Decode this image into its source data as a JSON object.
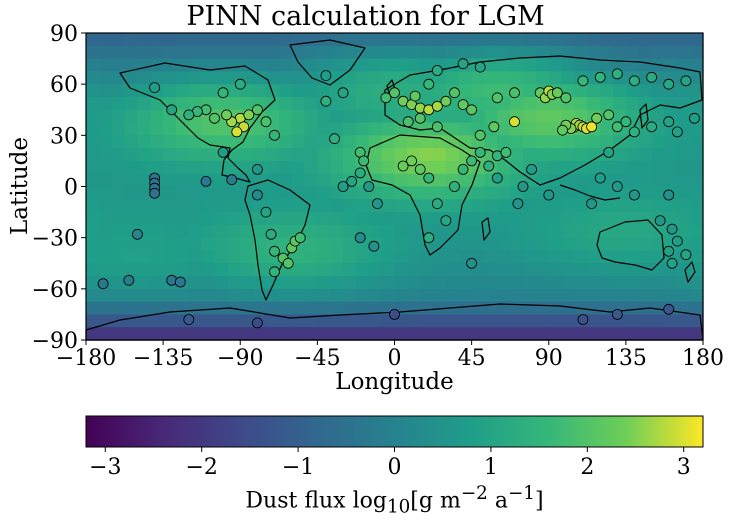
{
  "chart_data": [
    {
      "type": "heatmap",
      "title": "PINN calculation for LGM",
      "xlabel": "Longitude",
      "ylabel": "Latitude",
      "xlim": [
        -180,
        180
      ],
      "ylim": [
        -90,
        90
      ],
      "x_ticks": [
        -180,
        -135,
        -90,
        -45,
        0,
        45,
        90,
        135,
        180
      ],
      "x_tick_labels": [
        "−180",
        "−135",
        "−90",
        "−45",
        "0",
        "45",
        "90",
        "135",
        "180"
      ],
      "y_ticks": [
        -90,
        -60,
        -30,
        0,
        30,
        60,
        90
      ],
      "y_tick_labels": [
        "−90",
        "−60",
        "−30",
        "0",
        "30",
        "60",
        "90"
      ],
      "background": "global map of dust flux with coastlines",
      "colormap": "viridis",
      "colorbar": {
        "label": "Dust flux log10[g m−2 a−1]",
        "label_parts": {
          "prefix": "Dust flux log",
          "sub": "10",
          "mid": "[g m",
          "sup1": "−2",
          "mid2": " a",
          "sup2": "−1",
          "suffix": "]"
        },
        "range": [
          -3.2,
          3.2
        ],
        "ticks": [
          -3,
          -2,
          -1,
          0,
          1,
          2,
          3
        ],
        "tick_labels": [
          "−3",
          "−2",
          "−1",
          "0",
          "1",
          "2",
          "3"
        ],
        "orientation": "horizontal"
      },
      "field_hotspots": [
        {
          "lon": 20,
          "lat": 18,
          "value": 2.6
        },
        {
          "lon": 90,
          "lat": 42,
          "value": 2.4
        },
        {
          "lon": 60,
          "lat": 60,
          "value": 2.2
        },
        {
          "lon": -100,
          "lat": 40,
          "value": 2.2
        },
        {
          "lon": -60,
          "lat": -40,
          "value": 1.6
        },
        {
          "lon": 0,
          "lat": 62,
          "value": 1.8
        },
        {
          "lon": 135,
          "lat": -28,
          "value": 1.2
        },
        {
          "lon": -150,
          "lat": -45,
          "value": 1.1
        },
        {
          "lon": 160,
          "lat": 50,
          "value": 1.0
        }
      ],
      "points": [
        {
          "lon": -90,
          "lat": 40,
          "value": 2.8
        },
        {
          "lon": -88,
          "lat": 35,
          "value": 2.9
        },
        {
          "lon": -92,
          "lat": 32,
          "value": 3.0
        },
        {
          "lon": -95,
          "lat": 38,
          "value": 2.7
        },
        {
          "lon": -85,
          "lat": 42,
          "value": 2.5
        },
        {
          "lon": -98,
          "lat": 42,
          "value": 2.4
        },
        {
          "lon": -105,
          "lat": 40,
          "value": 2.0
        },
        {
          "lon": -110,
          "lat": 45,
          "value": 1.8
        },
        {
          "lon": -115,
          "lat": 44,
          "value": 1.6
        },
        {
          "lon": -120,
          "lat": 42,
          "value": 1.4
        },
        {
          "lon": -80,
          "lat": 45,
          "value": 2.0
        },
        {
          "lon": -75,
          "lat": 38,
          "value": 1.9
        },
        {
          "lon": -70,
          "lat": 30,
          "value": 1.5
        },
        {
          "lon": -100,
          "lat": 55,
          "value": 1.5
        },
        {
          "lon": -90,
          "lat": 60,
          "value": 1.2
        },
        {
          "lon": -130,
          "lat": 45,
          "value": 1.0
        },
        {
          "lon": -140,
          "lat": 58,
          "value": 0.8
        },
        {
          "lon": -100,
          "lat": 20,
          "value": 0.8
        },
        {
          "lon": -80,
          "lat": 10,
          "value": 0.6
        },
        {
          "lon": -140,
          "lat": 5,
          "value": -0.5
        },
        {
          "lon": -140,
          "lat": 2,
          "value": -0.5
        },
        {
          "lon": -140,
          "lat": -1,
          "value": -0.4
        },
        {
          "lon": -140,
          "lat": -4,
          "value": -0.5
        },
        {
          "lon": -110,
          "lat": 3,
          "value": -0.3
        },
        {
          "lon": -95,
          "lat": 4,
          "value": -0.2
        },
        {
          "lon": -80,
          "lat": -5,
          "value": 0.2
        },
        {
          "lon": -75,
          "lat": -15,
          "value": 1.0
        },
        {
          "lon": -72,
          "lat": -28,
          "value": 1.2
        },
        {
          "lon": -70,
          "lat": -38,
          "value": 1.6
        },
        {
          "lon": -65,
          "lat": -42,
          "value": 2.0
        },
        {
          "lon": -60,
          "lat": -36,
          "value": 2.2
        },
        {
          "lon": -58,
          "lat": -32,
          "value": 2.1
        },
        {
          "lon": -62,
          "lat": -45,
          "value": 2.0
        },
        {
          "lon": -55,
          "lat": -30,
          "value": 1.8
        },
        {
          "lon": -70,
          "lat": -50,
          "value": 1.5
        },
        {
          "lon": -130,
          "lat": -55,
          "value": -0.3
        },
        {
          "lon": -125,
          "lat": -56,
          "value": -0.3
        },
        {
          "lon": -170,
          "lat": -57,
          "value": -0.3
        },
        {
          "lon": -155,
          "lat": -55,
          "value": -0.2
        },
        {
          "lon": -150,
          "lat": -28,
          "value": 0.1
        },
        {
          "lon": -120,
          "lat": -78,
          "value": -1.2
        },
        {
          "lon": -35,
          "lat": 28,
          "value": 1.3
        },
        {
          "lon": -40,
          "lat": 50,
          "value": 1.4
        },
        {
          "lon": -40,
          "lat": 65,
          "value": 0.8
        },
        {
          "lon": -30,
          "lat": 55,
          "value": 1.0
        },
        {
          "lon": -20,
          "lat": 20,
          "value": 1.8
        },
        {
          "lon": -18,
          "lat": 15,
          "value": 1.7
        },
        {
          "lon": -20,
          "lat": 8,
          "value": 1.2
        },
        {
          "lon": -25,
          "lat": 3,
          "value": 1.0
        },
        {
          "lon": -30,
          "lat": 0,
          "value": 0.8
        },
        {
          "lon": -15,
          "lat": 0,
          "value": 0.7
        },
        {
          "lon": -10,
          "lat": -10,
          "value": 0.6
        },
        {
          "lon": -12,
          "lat": -35,
          "value": 0.4
        },
        {
          "lon": -20,
          "lat": -30,
          "value": 0.3
        },
        {
          "lon": 0,
          "lat": -75,
          "value": -1.5
        },
        {
          "lon": 5,
          "lat": 50,
          "value": 2.4
        },
        {
          "lon": 10,
          "lat": 48,
          "value": 2.5
        },
        {
          "lon": 15,
          "lat": 46,
          "value": 2.6
        },
        {
          "lon": 20,
          "lat": 45,
          "value": 2.8
        },
        {
          "lon": 25,
          "lat": 47,
          "value": 2.7
        },
        {
          "lon": 30,
          "lat": 50,
          "value": 2.4
        },
        {
          "lon": 0,
          "lat": 55,
          "value": 2.0
        },
        {
          "lon": -5,
          "lat": 52,
          "value": 1.8
        },
        {
          "lon": 12,
          "lat": 53,
          "value": 2.2
        },
        {
          "lon": 35,
          "lat": 55,
          "value": 2.0
        },
        {
          "lon": 40,
          "lat": 48,
          "value": 2.2
        },
        {
          "lon": 45,
          "lat": 45,
          "value": 2.1
        },
        {
          "lon": 15,
          "lat": 40,
          "value": 2.0
        },
        {
          "lon": 8,
          "lat": 38,
          "value": 1.9
        },
        {
          "lon": 25,
          "lat": 35,
          "value": 1.9
        },
        {
          "lon": 20,
          "lat": 60,
          "value": 1.6
        },
        {
          "lon": 25,
          "lat": 68,
          "value": 1.2
        },
        {
          "lon": 40,
          "lat": 72,
          "value": 1.0
        },
        {
          "lon": 50,
          "lat": 70,
          "value": 1.0
        },
        {
          "lon": 10,
          "lat": 15,
          "value": 2.4
        },
        {
          "lon": 5,
          "lat": 12,
          "value": 2.3
        },
        {
          "lon": 15,
          "lat": 10,
          "value": 2.2
        },
        {
          "lon": 20,
          "lat": 5,
          "value": 1.5
        },
        {
          "lon": 25,
          "lat": -10,
          "value": 1.2
        },
        {
          "lon": 30,
          "lat": -20,
          "value": 1.1
        },
        {
          "lon": 20,
          "lat": -30,
          "value": 1.3
        },
        {
          "lon": 35,
          "lat": 0,
          "value": 1.4
        },
        {
          "lon": 40,
          "lat": 10,
          "value": 1.6
        },
        {
          "lon": 45,
          "lat": 15,
          "value": 1.7
        },
        {
          "lon": 50,
          "lat": 20,
          "value": 1.6
        },
        {
          "lon": 55,
          "lat": 12,
          "value": 1.4
        },
        {
          "lon": 60,
          "lat": 18,
          "value": 1.5
        },
        {
          "lon": 65,
          "lat": 20,
          "value": 1.8
        },
        {
          "lon": 70,
          "lat": 38,
          "value": 3.0
        },
        {
          "lon": 58,
          "lat": 35,
          "value": 2.2
        },
        {
          "lon": 50,
          "lat": 30,
          "value": 2.0
        },
        {
          "lon": 60,
          "lat": 5,
          "value": 0.8
        },
        {
          "lon": 75,
          "lat": 0,
          "value": 0.6
        },
        {
          "lon": 80,
          "lat": 10,
          "value": 0.8
        },
        {
          "lon": 90,
          "lat": -5,
          "value": 0.6
        },
        {
          "lon": 72,
          "lat": -10,
          "value": 0.5
        },
        {
          "lon": 45,
          "lat": -45,
          "value": 0.4
        },
        {
          "lon": 85,
          "lat": 55,
          "value": 2.2
        },
        {
          "lon": 88,
          "lat": 52,
          "value": 2.6
        },
        {
          "lon": 90,
          "lat": 56,
          "value": 2.8
        },
        {
          "lon": 92,
          "lat": 54,
          "value": 2.5
        },
        {
          "lon": 95,
          "lat": 55,
          "value": 2.3
        },
        {
          "lon": 100,
          "lat": 52,
          "value": 2.0
        },
        {
          "lon": 105,
          "lat": 35,
          "value": 2.6
        },
        {
          "lon": 106,
          "lat": 37,
          "value": 2.8
        },
        {
          "lon": 108,
          "lat": 36,
          "value": 2.7
        },
        {
          "lon": 110,
          "lat": 35,
          "value": 2.9
        },
        {
          "lon": 112,
          "lat": 34,
          "value": 3.0
        },
        {
          "lon": 103,
          "lat": 34,
          "value": 2.5
        },
        {
          "lon": 115,
          "lat": 35,
          "value": 3.1
        },
        {
          "lon": 100,
          "lat": 36,
          "value": 2.4
        },
        {
          "lon": 98,
          "lat": 33,
          "value": 2.2
        },
        {
          "lon": 118,
          "lat": 40,
          "value": 2.4
        },
        {
          "lon": 125,
          "lat": 42,
          "value": 2.0
        },
        {
          "lon": 130,
          "lat": 35,
          "value": 1.8
        },
        {
          "lon": 135,
          "lat": 38,
          "value": 1.6
        },
        {
          "lon": 140,
          "lat": 32,
          "value": 1.4
        },
        {
          "lon": 150,
          "lat": 35,
          "value": 1.2
        },
        {
          "lon": 160,
          "lat": 38,
          "value": 1.0
        },
        {
          "lon": 165,
          "lat": 32,
          "value": 0.9
        },
        {
          "lon": 175,
          "lat": 40,
          "value": 0.8
        },
        {
          "lon": 110,
          "lat": 62,
          "value": 1.6
        },
        {
          "lon": 120,
          "lat": 64,
          "value": 1.5
        },
        {
          "lon": 130,
          "lat": 66,
          "value": 1.4
        },
        {
          "lon": 140,
          "lat": 62,
          "value": 1.3
        },
        {
          "lon": 150,
          "lat": 64,
          "value": 1.2
        },
        {
          "lon": 160,
          "lat": 60,
          "value": 1.1
        },
        {
          "lon": 170,
          "lat": 62,
          "value": 1.0
        },
        {
          "lon": 125,
          "lat": 20,
          "value": 1.0
        },
        {
          "lon": 120,
          "lat": 5,
          "value": 0.8
        },
        {
          "lon": 130,
          "lat": 0,
          "value": 0.7
        },
        {
          "lon": 140,
          "lat": -5,
          "value": 0.6
        },
        {
          "lon": 115,
          "lat": -10,
          "value": 0.6
        },
        {
          "lon": 160,
          "lat": -5,
          "value": 0.4
        },
        {
          "lon": 155,
          "lat": -20,
          "value": 0.6
        },
        {
          "lon": 162,
          "lat": -25,
          "value": 0.6
        },
        {
          "lon": 165,
          "lat": -32,
          "value": 0.8
        },
        {
          "lon": 160,
          "lat": -38,
          "value": 0.9
        },
        {
          "lon": 170,
          "lat": -40,
          "value": 1.0
        },
        {
          "lon": 162,
          "lat": -45,
          "value": 0.9
        },
        {
          "lon": 110,
          "lat": -78,
          "value": -1.4
        },
        {
          "lon": 160,
          "lat": -72,
          "value": -1.3
        },
        {
          "lon": 130,
          "lat": -75,
          "value": -1.2
        },
        {
          "lon": -80,
          "lat": -80,
          "value": -1.5
        },
        {
          "lon": 60,
          "lat": 52,
          "value": 2.0
        },
        {
          "lon": 70,
          "lat": 55,
          "value": 1.9
        }
      ]
    }
  ]
}
